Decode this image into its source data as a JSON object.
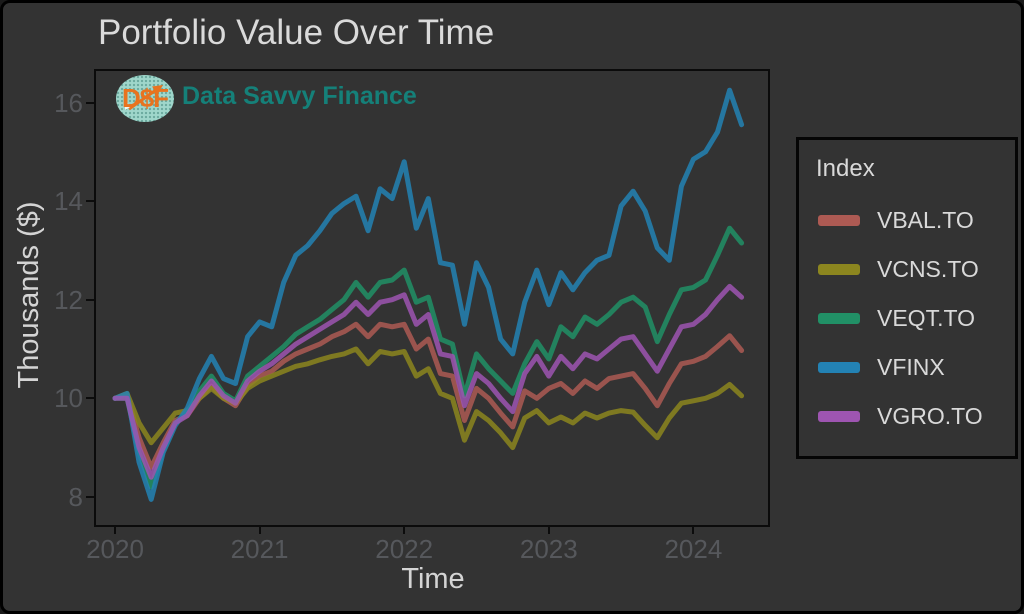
{
  "figure": {
    "title": "Portfolio Value Over Time",
    "background_color": "#333333",
    "brand": {
      "logo_monogram": "D$F",
      "name": "Data Savvy Finance",
      "logo_bg_color": "#9fd6cb",
      "logo_text_color": "#e8731f",
      "name_color": "#158079"
    }
  },
  "chart_data": {
    "type": "line",
    "title": "Portfolio Value Over Time",
    "xlabel": "Time",
    "ylabel": "Thousands ($)",
    "legend_title": "Index",
    "legend_position": "right",
    "grid": false,
    "x_unit": "month",
    "x": [
      "2020-01",
      "2020-02",
      "2020-03",
      "2020-04",
      "2020-05",
      "2020-06",
      "2020-07",
      "2020-08",
      "2020-09",
      "2020-10",
      "2020-11",
      "2020-12",
      "2021-01",
      "2021-02",
      "2021-03",
      "2021-04",
      "2021-05",
      "2021-06",
      "2021-07",
      "2021-08",
      "2021-09",
      "2021-10",
      "2021-11",
      "2021-12",
      "2022-01",
      "2022-02",
      "2022-03",
      "2022-04",
      "2022-05",
      "2022-06",
      "2022-07",
      "2022-08",
      "2022-09",
      "2022-10",
      "2022-11",
      "2022-12",
      "2023-01",
      "2023-02",
      "2023-03",
      "2023-04",
      "2023-05",
      "2023-06",
      "2023-07",
      "2023-08",
      "2023-09",
      "2023-10",
      "2023-11",
      "2023-12",
      "2024-01",
      "2024-02",
      "2024-03",
      "2024-04",
      "2024-05"
    ],
    "x_tick_labels": [
      "2020",
      "2021",
      "2022",
      "2023",
      "2024"
    ],
    "x_tick_month_index": [
      0,
      12,
      24,
      36,
      48
    ],
    "y_ticks": [
      8,
      10,
      12,
      14,
      16
    ],
    "ylim": [
      7.35,
      16.65
    ],
    "series": [
      {
        "name": "VBAL.TO",
        "color": "#ad5a53",
        "values": [
          10.0,
          10.05,
          9.2,
          8.6,
          9.1,
          9.55,
          9.65,
          10.0,
          10.25,
          10.0,
          9.85,
          10.25,
          10.45,
          10.55,
          10.75,
          10.9,
          11.0,
          11.1,
          11.25,
          11.35,
          11.5,
          11.25,
          11.5,
          11.45,
          11.5,
          11.0,
          11.2,
          10.5,
          10.45,
          9.55,
          10.2,
          10.0,
          9.7,
          9.42,
          10.15,
          10.0,
          10.2,
          10.3,
          10.1,
          10.35,
          10.2,
          10.4,
          10.45,
          10.5,
          10.2,
          9.85,
          10.3,
          10.7,
          10.75,
          10.85,
          11.05,
          11.27,
          10.97
        ]
      },
      {
        "name": "VCNS.TO",
        "color": "#8c861f",
        "values": [
          10.0,
          10.1,
          9.5,
          9.1,
          9.4,
          9.7,
          9.75,
          10.0,
          10.2,
          10.0,
          9.9,
          10.2,
          10.35,
          10.45,
          10.55,
          10.65,
          10.7,
          10.78,
          10.85,
          10.9,
          11.0,
          10.7,
          10.95,
          10.9,
          10.95,
          10.45,
          10.6,
          10.1,
          10.0,
          9.15,
          9.73,
          9.55,
          9.3,
          9.0,
          9.6,
          9.75,
          9.5,
          9.62,
          9.5,
          9.7,
          9.6,
          9.7,
          9.75,
          9.72,
          9.45,
          9.2,
          9.6,
          9.9,
          9.95,
          10.0,
          10.1,
          10.28,
          10.05
        ]
      },
      {
        "name": "VEQT.TO",
        "color": "#219066",
        "values": [
          10.0,
          10.0,
          8.9,
          8.2,
          8.95,
          9.5,
          9.7,
          10.15,
          10.45,
          10.1,
          9.95,
          10.45,
          10.65,
          10.85,
          11.05,
          11.3,
          11.45,
          11.6,
          11.8,
          12.0,
          12.35,
          12.05,
          12.35,
          12.4,
          12.6,
          11.95,
          12.05,
          11.2,
          11.1,
          10.05,
          10.9,
          10.6,
          10.35,
          10.1,
          10.7,
          11.15,
          10.8,
          11.45,
          11.25,
          11.65,
          11.5,
          11.7,
          11.95,
          12.05,
          11.85,
          11.15,
          11.7,
          12.2,
          12.25,
          12.4,
          12.9,
          13.45,
          13.15
        ]
      },
      {
        "name": "VFINX",
        "color": "#2382b4",
        "values": [
          10.0,
          10.1,
          8.7,
          7.95,
          8.9,
          9.45,
          9.8,
          10.4,
          10.85,
          10.4,
          10.3,
          11.25,
          11.55,
          11.45,
          12.35,
          12.9,
          13.1,
          13.4,
          13.75,
          13.95,
          14.1,
          13.4,
          14.25,
          14.05,
          14.8,
          13.45,
          14.05,
          12.75,
          12.7,
          11.5,
          12.75,
          12.25,
          11.2,
          10.9,
          11.95,
          12.6,
          11.9,
          12.55,
          12.2,
          12.55,
          12.8,
          12.9,
          13.9,
          14.2,
          13.8,
          13.05,
          12.8,
          14.3,
          14.85,
          15.0,
          15.4,
          16.25,
          15.55
        ]
      },
      {
        "name": "VGRO.TO",
        "color": "#9e55b1",
        "values": [
          10.0,
          10.0,
          9.0,
          8.4,
          9.0,
          9.5,
          9.65,
          10.05,
          10.35,
          10.05,
          9.9,
          10.35,
          10.55,
          10.7,
          10.9,
          11.1,
          11.25,
          11.4,
          11.55,
          11.7,
          11.95,
          11.7,
          11.95,
          12.0,
          12.1,
          11.5,
          11.7,
          10.9,
          10.85,
          9.85,
          10.5,
          10.3,
          10.0,
          9.73,
          10.5,
          10.85,
          10.45,
          10.85,
          10.6,
          10.9,
          10.8,
          11.0,
          11.2,
          11.25,
          10.9,
          10.55,
          11.0,
          11.45,
          11.5,
          11.7,
          12.0,
          12.27,
          12.05
        ]
      }
    ]
  }
}
